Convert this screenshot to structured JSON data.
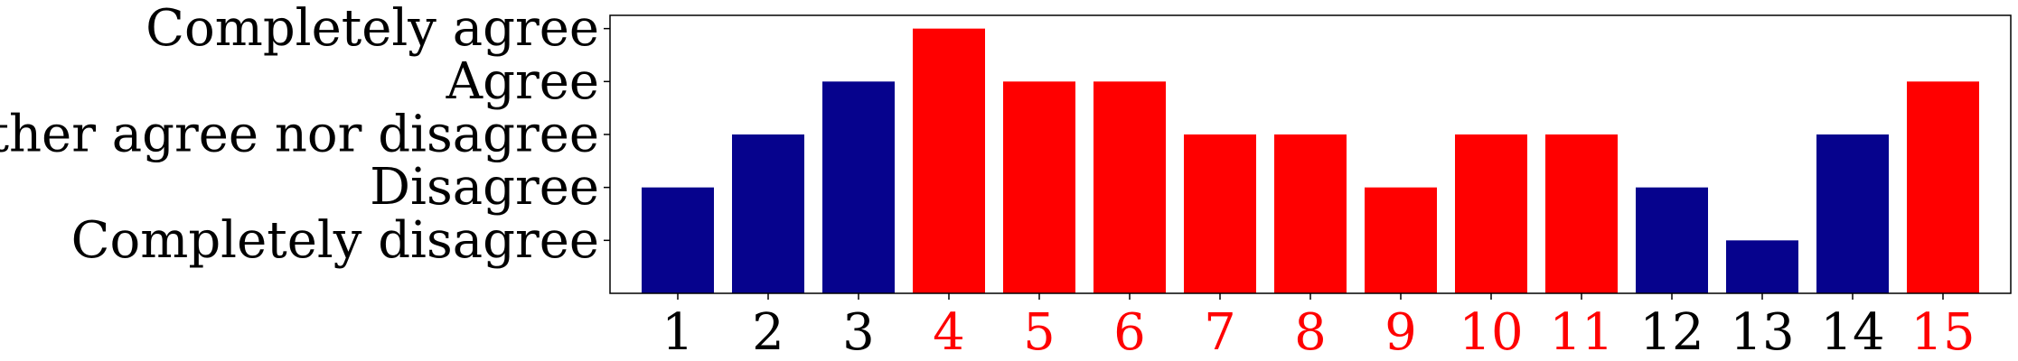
{
  "chart_data": {
    "type": "bar",
    "categories": [
      "1",
      "2",
      "3",
      "4",
      "5",
      "6",
      "7",
      "8",
      "9",
      "10",
      "11",
      "12",
      "13",
      "14",
      "15"
    ],
    "values": [
      2,
      3,
      4,
      5,
      4,
      4,
      3,
      3,
      2,
      3,
      3,
      2,
      1,
      3,
      4
    ],
    "bar_colors": [
      "#06038D",
      "#06038D",
      "#06038D",
      "#FF0000",
      "#FF0000",
      "#FF0000",
      "#FF0000",
      "#FF0000",
      "#FF0000",
      "#FF0000",
      "#FF0000",
      "#06038D",
      "#06038D",
      "#06038D",
      "#FF0000"
    ],
    "x_tick_colors": [
      "#000000",
      "#000000",
      "#000000",
      "#FF0000",
      "#FF0000",
      "#FF0000",
      "#FF0000",
      "#FF0000",
      "#FF0000",
      "#FF0000",
      "#FF0000",
      "#000000",
      "#000000",
      "#000000",
      "#FF0000"
    ],
    "y_ticks": [
      {
        "value": 1,
        "label": "Completely disagree"
      },
      {
        "value": 2,
        "label": "Disagree"
      },
      {
        "value": 3,
        "label": "Neither agree nor disagree"
      },
      {
        "value": 4,
        "label": "Agree"
      },
      {
        "value": 5,
        "label": "Completely agree"
      }
    ],
    "ylim": [
      0,
      5.25
    ],
    "grid": false,
    "title": "",
    "xlabel": "",
    "ylabel": ""
  }
}
